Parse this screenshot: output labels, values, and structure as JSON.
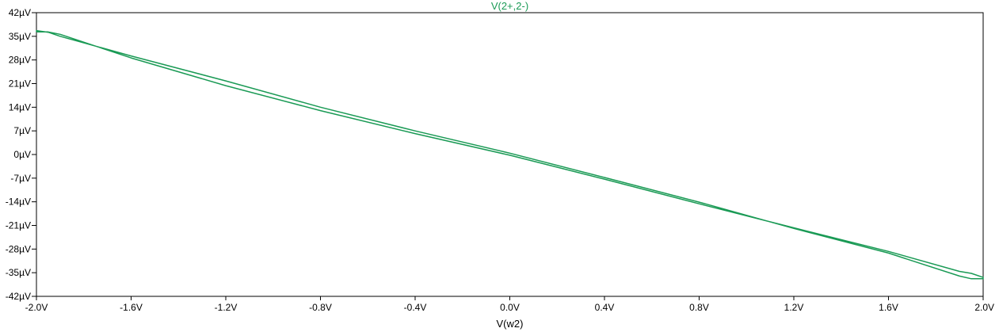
{
  "colors": {
    "trace": "#1a9a55",
    "axis": "#000000",
    "background": "#ffffff"
  },
  "chart_data": {
    "type": "line",
    "title": "V(2+,2-)",
    "xlabel": "V(w2)",
    "ylabel": "",
    "xlim": [
      -2.0,
      2.0
    ],
    "ylim": [
      -42,
      42
    ],
    "grid": false,
    "x_ticks": [
      "-2.0V",
      "-1.6V",
      "-1.2V",
      "-0.8V",
      "-0.4V",
      "0.0V",
      "0.4V",
      "0.8V",
      "1.2V",
      "1.6V",
      "2.0V"
    ],
    "y_ticks": [
      "42µV",
      "35µV",
      "28µV",
      "21µV",
      "14µV",
      "7µV",
      "0µV",
      "-7µV",
      "-14µV",
      "-21µV",
      "-28µV",
      "-35µV",
      "-42µV"
    ],
    "series": [
      {
        "name": "V(2+,2-)",
        "x": [
          -2.0,
          -1.95,
          -1.9,
          -1.6,
          -1.2,
          -0.8,
          -0.4,
          0.0,
          0.4,
          0.8,
          1.2,
          1.6,
          1.9,
          1.95,
          2.0,
          2.0,
          1.95,
          1.9,
          1.6,
          1.2,
          0.8,
          0.4,
          0.0,
          -0.4,
          -0.8,
          -1.2,
          -1.6,
          -1.9,
          -1.95,
          -2.0,
          -2.0
        ],
        "y": [
          36.3,
          36.3,
          35.6,
          28.6,
          20.4,
          13.0,
          6.2,
          -0.2,
          -7.3,
          -14.6,
          -21.7,
          -28.7,
          -34.6,
          -35.2,
          -36.4,
          -36.8,
          -36.8,
          -36.0,
          -29.2,
          -21.9,
          -14.1,
          -6.8,
          0.4,
          7.0,
          14.0,
          21.8,
          29.2,
          35.0,
          36.2,
          36.7,
          36.3
        ]
      }
    ]
  }
}
